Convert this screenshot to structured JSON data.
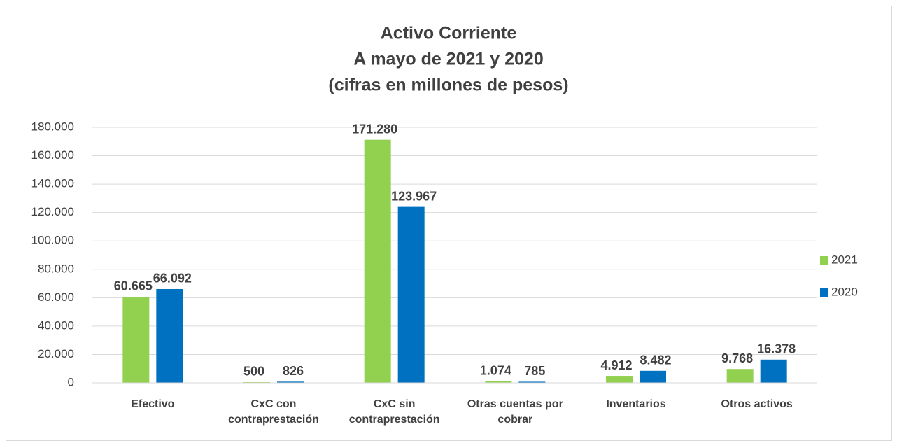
{
  "chart_data": {
    "type": "bar",
    "title": [
      "Activo Corriente",
      "A mayo de 2021 y 2020",
      "(cifras en millones de pesos)"
    ],
    "categories": [
      "Efectivo",
      "CxC con contraprestación",
      "CxC sin contraprestación",
      "Otras cuentas por cobrar",
      "Inventarios",
      "Otros activos"
    ],
    "series": [
      {
        "name": "2021",
        "color": "#92d050",
        "values": [
          60665,
          500,
          171280,
          1074,
          4912,
          9768
        ],
        "value_labels": [
          "60.665",
          "500",
          "171.280",
          "1.074",
          "4.912",
          "9.768"
        ]
      },
      {
        "name": "2020",
        "color": "#0070c0",
        "values": [
          66092,
          826,
          123967,
          785,
          8482,
          16378
        ],
        "value_labels": [
          "66.092",
          "826",
          "123.967",
          "785",
          "8.482",
          "16.378"
        ]
      }
    ],
    "ylim": [
      0,
      180000
    ],
    "yticks": [
      0,
      {
        "value": 20000,
        "label": "20.000"
      },
      {
        "value": 40000,
        "label": "40.000"
      },
      {
        "value": 60000,
        "label": "60.000"
      },
      {
        "value": 80000,
        "label": "80.000"
      },
      {
        "value": 100000,
        "label": "100.000"
      },
      {
        "value": 120000,
        "label": "120.000"
      },
      {
        "value": 140000,
        "label": "140.000"
      },
      {
        "value": 160000,
        "label": "160.000"
      },
      {
        "value": 180000,
        "label": "180.000"
      }
    ],
    "grid": true,
    "legend": "right"
  }
}
